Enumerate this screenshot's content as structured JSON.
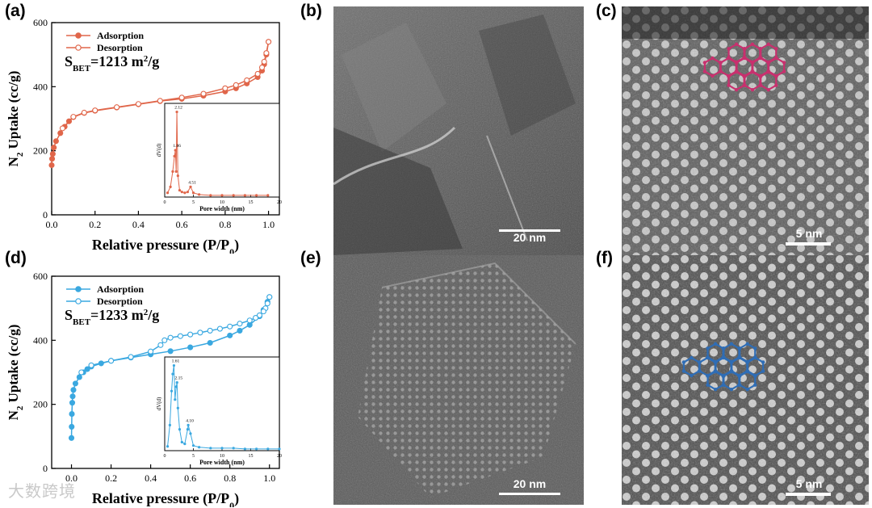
{
  "panels": {
    "a": "(a)",
    "b": "(b)",
    "c": "(c)",
    "d": "(d)",
    "e": "(e)",
    "f": "(f)"
  },
  "images": {
    "b": {
      "scale": "20 nm"
    },
    "c": {
      "scale": "5 nm",
      "overlay_color": "#c8306e"
    },
    "e": {
      "scale": "20 nm"
    },
    "f": {
      "scale": "5 nm",
      "overlay_color": "#2f6db5"
    }
  },
  "watermark": "大数跨境",
  "chart_data": [
    {
      "type": "line",
      "color": "#e0664a",
      "ylabel_main": "N",
      "ylabel_sub": "2",
      "ylabel_rest": " Uptake (cc/g)",
      "xlabel_main": "Relative pressure (P/P",
      "xlabel_sub": "0",
      "xlabel_end": ")",
      "xlim": [
        0,
        1.05
      ],
      "ylim": [
        0,
        600
      ],
      "xticks": [
        "0.0",
        "0.2",
        "0.4",
        "0.6",
        "0.8",
        "1.0"
      ],
      "yticks": [
        "0",
        "200",
        "400",
        "600"
      ],
      "bet_main": "S",
      "bet_sub": "BET",
      "bet_value": "=1213 m",
      "bet_sup": "2",
      "bet_unit": "/g",
      "series": [
        {
          "name": "Adsorption",
          "marker": "filled",
          "x": [
            0.0,
            0.002,
            0.005,
            0.01,
            0.02,
            0.04,
            0.06,
            0.08,
            0.1,
            0.15,
            0.2,
            0.3,
            0.4,
            0.5,
            0.6,
            0.7,
            0.8,
            0.85,
            0.9,
            0.95,
            0.97,
            0.98,
            0.99,
            1.0
          ],
          "y": [
            155,
            175,
            190,
            210,
            230,
            255,
            275,
            292,
            305,
            318,
            325,
            335,
            345,
            355,
            362,
            372,
            385,
            395,
            410,
            430,
            450,
            470,
            500,
            540
          ]
        },
        {
          "name": "Desorption",
          "marker": "open",
          "x": [
            1.0,
            0.99,
            0.98,
            0.97,
            0.95,
            0.9,
            0.85,
            0.8,
            0.7,
            0.6,
            0.5,
            0.4,
            0.3,
            0.2,
            0.15,
            0.1,
            0.05
          ],
          "y": [
            540,
            505,
            478,
            460,
            440,
            420,
            405,
            395,
            378,
            366,
            356,
            346,
            336,
            326,
            319,
            306,
            270
          ]
        }
      ],
      "inset": {
        "ylabel": "dV(d)",
        "xlabel": "Pore width (nm)",
        "xlim": [
          0,
          20
        ],
        "xticks": [
          "0",
          "5",
          "10",
          "15",
          "20"
        ],
        "peaks": [
          "1.86",
          "2.12",
          "4.51"
        ],
        "x": [
          0.5,
          1.0,
          1.4,
          1.7,
          1.86,
          2.0,
          2.12,
          2.3,
          2.6,
          3.0,
          3.5,
          4.0,
          4.51,
          5.0,
          6,
          8,
          10,
          12,
          14,
          16,
          18
        ],
        "y": [
          0.05,
          0.12,
          0.3,
          0.48,
          0.55,
          0.3,
          1.0,
          0.25,
          0.08,
          0.06,
          0.05,
          0.06,
          0.12,
          0.05,
          0.03,
          0.02,
          0.02,
          0.02,
          0.02,
          0.02,
          0.02
        ],
        "ymax": 1.1
      }
    },
    {
      "type": "line",
      "color": "#3aa8e0",
      "ylabel_main": "N",
      "ylabel_sub": "2",
      "ylabel_rest": " Uptake (cc/g)",
      "xlabel_main": "Relative pressure (P/P",
      "xlabel_sub": "0",
      "xlabel_end": ")",
      "xlim": [
        -0.1,
        1.05
      ],
      "ylim": [
        0,
        600
      ],
      "xticks": [
        "0.0",
        "0.2",
        "0.4",
        "0.6",
        "0.8",
        "1.0"
      ],
      "yticks": [
        "0",
        "200",
        "400",
        "600"
      ],
      "bet_main": "S",
      "bet_sub": "BET",
      "bet_value": "=1233 m",
      "bet_sup": "2",
      "bet_unit": "/g",
      "series": [
        {
          "name": "Adsorption",
          "marker": "filled",
          "x": [
            0.0,
            0.001,
            0.002,
            0.004,
            0.006,
            0.01,
            0.02,
            0.04,
            0.06,
            0.08,
            0.1,
            0.15,
            0.2,
            0.3,
            0.4,
            0.5,
            0.6,
            0.7,
            0.8,
            0.85,
            0.9,
            0.95,
            0.97,
            0.99,
            1.0
          ],
          "y": [
            95,
            130,
            170,
            205,
            225,
            245,
            265,
            285,
            300,
            310,
            318,
            328,
            336,
            346,
            356,
            366,
            378,
            392,
            415,
            430,
            448,
            475,
            495,
            520,
            535
          ]
        },
        {
          "name": "Desorption",
          "marker": "open",
          "x": [
            1.0,
            0.99,
            0.98,
            0.97,
            0.95,
            0.93,
            0.9,
            0.85,
            0.8,
            0.75,
            0.7,
            0.65,
            0.6,
            0.55,
            0.5,
            0.47,
            0.45,
            0.4,
            0.3,
            0.2,
            0.1,
            0.05
          ],
          "y": [
            535,
            515,
            500,
            490,
            478,
            470,
            462,
            452,
            443,
            436,
            430,
            424,
            418,
            413,
            408,
            400,
            385,
            365,
            348,
            336,
            322,
            300
          ]
        }
      ],
      "inset": {
        "ylabel": "dV(d)",
        "xlabel": "Pore width (nm)",
        "xlim": [
          0,
          20
        ],
        "xticks": [
          "0",
          "5",
          "10",
          "15",
          "20"
        ],
        "peaks": [
          "1.61",
          "2.15",
          "4.10"
        ],
        "x": [
          0.5,
          0.9,
          1.2,
          1.4,
          1.61,
          1.8,
          2.0,
          2.15,
          2.3,
          2.6,
          3.0,
          3.5,
          4.0,
          4.1,
          4.5,
          5.0,
          6,
          8,
          10,
          12,
          14,
          16,
          18,
          20
        ],
        "y": [
          0.05,
          0.3,
          0.7,
          0.9,
          1.0,
          0.6,
          0.75,
          0.8,
          0.5,
          0.25,
          0.1,
          0.08,
          0.25,
          0.3,
          0.2,
          0.06,
          0.04,
          0.03,
          0.03,
          0.03,
          0.02,
          0.02,
          0.02,
          0.02
        ],
        "ymax": 1.1
      }
    }
  ]
}
